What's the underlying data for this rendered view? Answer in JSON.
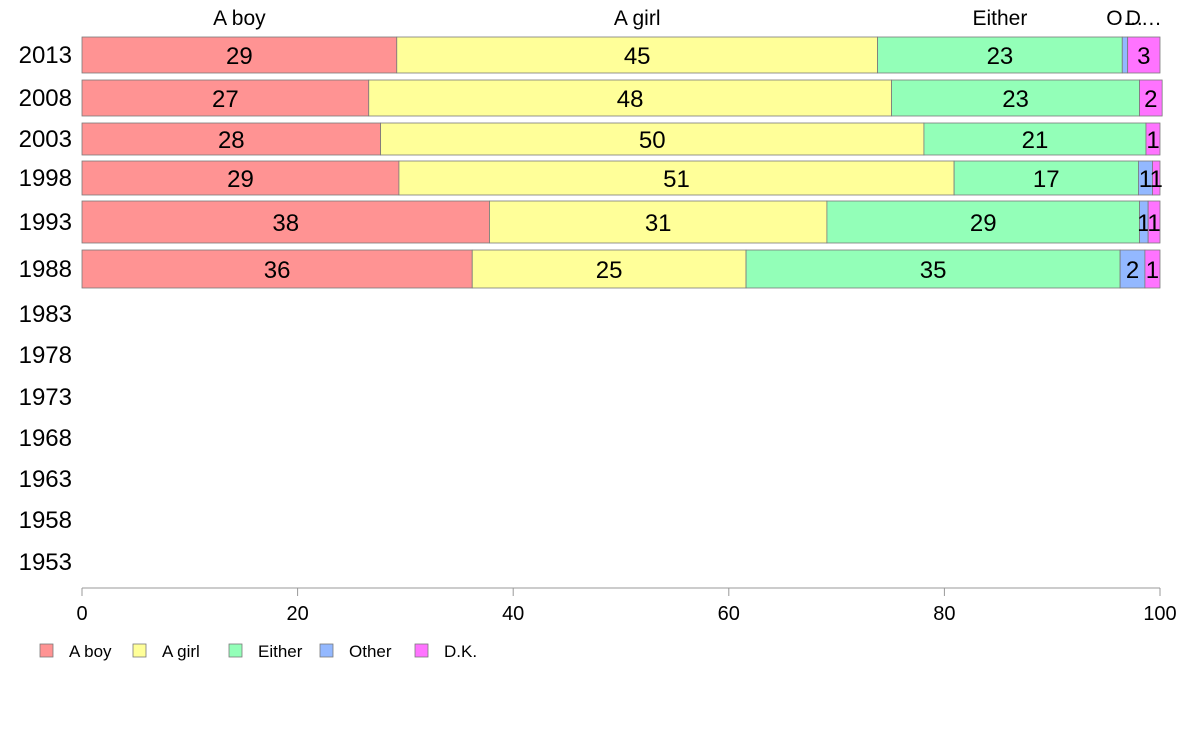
{
  "chart_data": {
    "type": "bar",
    "orientation": "horizontal",
    "stacked": true,
    "title": "",
    "xlabel": "",
    "ylabel": "",
    "xlim": [
      0,
      100
    ],
    "x_ticks": [
      "0",
      "20",
      "40",
      "60",
      "80",
      "100"
    ],
    "categories": [
      "2013",
      "2008",
      "2003",
      "1998",
      "1993",
      "1988",
      "1983",
      "1978",
      "1973",
      "1968",
      "1963",
      "1958",
      "1953"
    ],
    "series": [
      {
        "name": "A boy",
        "color": "#ff9393",
        "values": [
          29.2,
          26.6,
          27.7,
          29.4,
          37.8,
          36.2,
          null,
          null,
          null,
          null,
          null,
          null,
          null
        ],
        "labels": [
          "29",
          "27",
          "28",
          "29",
          "38",
          "36",
          "",
          "",
          "",
          "",
          "",
          "",
          ""
        ]
      },
      {
        "name": "A girl",
        "color": "#ffff99",
        "values": [
          44.6,
          48.5,
          50.4,
          51.5,
          31.3,
          25.4,
          null,
          null,
          null,
          null,
          null,
          null,
          null
        ],
        "labels": [
          "45",
          "48",
          "50",
          "51",
          "31",
          "25",
          "",
          "",
          "",
          "",
          "",
          "",
          ""
        ]
      },
      {
        "name": "Either",
        "color": "#93ffb8",
        "values": [
          22.7,
          23.0,
          20.6,
          17.1,
          29.0,
          34.7,
          null,
          null,
          null,
          null,
          null,
          null,
          null
        ],
        "labels": [
          "23",
          "23",
          "21",
          "17",
          "29",
          "35",
          "",
          "",
          "",
          "",
          "",
          "",
          ""
        ]
      },
      {
        "name": "Other",
        "color": "#93b8ff",
        "values": [
          0.5,
          0.0,
          0.0,
          1.3,
          0.8,
          2.3,
          null,
          null,
          null,
          null,
          null,
          null,
          null
        ],
        "labels": [
          "",
          "",
          "",
          "1",
          "1",
          "2",
          "",
          "",
          "",
          "",
          "",
          "",
          ""
        ]
      },
      {
        "name": "D.K.",
        "color": "#ff73ff",
        "values": [
          3.0,
          2.1,
          1.3,
          0.7,
          1.1,
          1.4,
          null,
          null,
          null,
          null,
          null,
          null,
          null
        ],
        "labels": [
          "3",
          "2",
          "1",
          "1",
          "1",
          "1",
          "",
          "",
          "",
          "",
          "",
          "",
          ""
        ]
      }
    ],
    "column_headers": [
      "A boy",
      "A girl",
      "Either",
      "O…",
      "D…"
    ],
    "legend": {
      "placement": "bottom-left",
      "entries": [
        "A boy",
        "A girl",
        "Either",
        "Other",
        "D.K."
      ]
    },
    "grid": false
  }
}
